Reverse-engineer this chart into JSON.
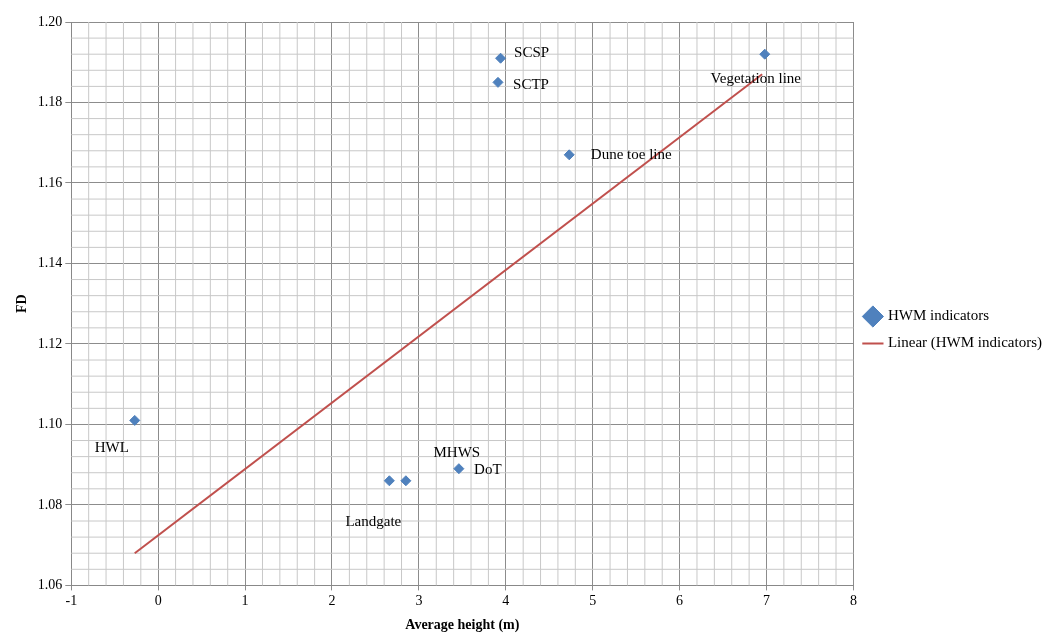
{
  "chart_data": {
    "type": "scatter",
    "xlabel": "Average height (m)",
    "ylabel": "FD",
    "series": [
      {
        "name": "HWM indicators",
        "color": "#4f81bd",
        "marker": "diamond",
        "x": [
          -0.27,
          2.66,
          2.85,
          3.46,
          3.94,
          3.91,
          4.73,
          6.98
        ],
        "values": [
          1.101,
          1.086,
          1.086,
          1.089,
          1.191,
          1.185,
          1.167,
          1.192
        ]
      },
      {
        "name": "Linear (HWM indicators)",
        "color": "#c0504d",
        "type": "line",
        "marker": "none",
        "x": [
          -0.27,
          6.95
        ],
        "values": [
          1.068,
          1.187
        ]
      }
    ],
    "annotations": [
      {
        "text": "HWL",
        "x": -0.27,
        "y": 1.101
      },
      {
        "text": "Landgate",
        "x": 2.66,
        "y": 1.086
      },
      {
        "text": "MHWS",
        "x": 2.85,
        "y": 1.086
      },
      {
        "text": "DoT",
        "x": 3.46,
        "y": 1.089
      },
      {
        "text": "SCSP",
        "x": 3.94,
        "y": 1.191
      },
      {
        "text": "SCTP",
        "x": 3.91,
        "y": 1.185
      },
      {
        "text": "Dune toe line",
        "x": 4.73,
        "y": 1.167
      },
      {
        "text": "Vegetation line",
        "x": 6.98,
        "y": 1.192
      }
    ],
    "xlim": [
      -1,
      8
    ],
    "xticks": [
      -1,
      0,
      1,
      2,
      3,
      4,
      5,
      6,
      7,
      8
    ],
    "ylim": [
      1.06,
      1.2
    ],
    "yticks": [
      {
        "value": 1.06,
        "label": "1.06"
      },
      {
        "value": 1.08,
        "label": "1.08"
      },
      {
        "value": 1.1,
        "label": "1.10"
      },
      {
        "value": 1.12,
        "label": "1.12"
      },
      {
        "value": 1.14,
        "label": "1.14"
      },
      {
        "value": 1.16,
        "label": "1.16"
      },
      {
        "value": 1.18,
        "label": "1.18"
      },
      {
        "value": 1.2,
        "label": "1.20"
      }
    ],
    "grid": true,
    "legend": "right"
  }
}
